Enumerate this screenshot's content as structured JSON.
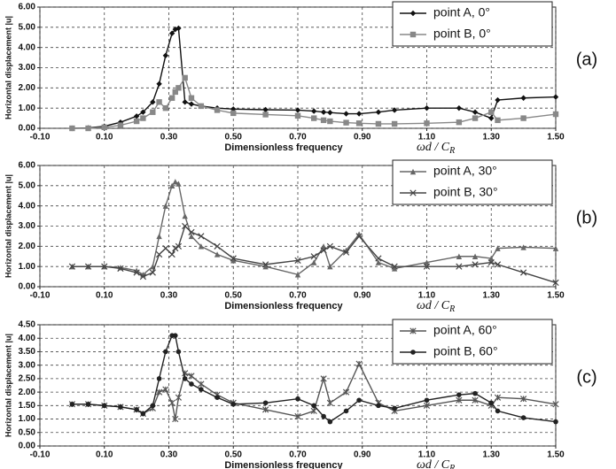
{
  "chart_data": [
    {
      "type": "line",
      "panel_label": "(a)",
      "xlabel": "Dimensionless frequency",
      "xlabel_formula": "ωd / C",
      "xlabel_formula_sub": "R",
      "ylabel": "Horizontal displacement |u|",
      "grid": true,
      "legend": "upper right",
      "xlim": [
        -0.1,
        1.5
      ],
      "ylim": [
        0,
        6
      ],
      "xticks": [
        {
          "value": -0.1,
          "label": "-0.10"
        },
        {
          "value": 0.1,
          "label": "0.10"
        },
        {
          "value": 0.3,
          "label": "0.30"
        },
        {
          "value": 0.5,
          "label": "0.50"
        },
        {
          "value": 0.7,
          "label": "0.70"
        },
        {
          "value": 0.9,
          "label": "0.90"
        },
        {
          "value": 1.1,
          "label": "1.10"
        },
        {
          "value": 1.3,
          "label": "1.30"
        },
        {
          "value": 1.5,
          "label": "1.50"
        }
      ],
      "yticks": [
        {
          "value": 0,
          "label": "0.00"
        },
        {
          "value": 1,
          "label": "1.00"
        },
        {
          "value": 2,
          "label": "2.00"
        },
        {
          "value": 3,
          "label": "3.00"
        },
        {
          "value": 4,
          "label": "4.00"
        },
        {
          "value": 5,
          "label": "5.00"
        },
        {
          "value": 6,
          "label": "6.00"
        }
      ],
      "x": [
        0.0,
        0.05,
        0.1,
        0.15,
        0.2,
        0.22,
        0.25,
        0.27,
        0.29,
        0.31,
        0.32,
        0.33,
        0.35,
        0.37,
        0.4,
        0.45,
        0.5,
        0.6,
        0.7,
        0.75,
        0.78,
        0.8,
        0.85,
        0.89,
        0.95,
        1.0,
        1.1,
        1.2,
        1.25,
        1.3,
        1.32,
        1.4,
        1.5
      ],
      "series": [
        {
          "name": "point A, 0°",
          "color": "#111111",
          "marker": "diamond",
          "values": [
            0,
            0.02,
            0.1,
            0.3,
            0.6,
            0.8,
            1.3,
            2.2,
            3.6,
            4.7,
            4.9,
            4.95,
            1.3,
            1.2,
            1.1,
            1.0,
            0.95,
            0.92,
            0.9,
            0.85,
            0.8,
            0.78,
            0.72,
            0.72,
            0.8,
            0.9,
            1.0,
            1.0,
            0.8,
            0.5,
            1.4,
            1.5,
            1.55
          ]
        },
        {
          "name": "point B, 0°",
          "color": "#888888",
          "marker": "square",
          "values": [
            0,
            0,
            0.05,
            0.15,
            0.35,
            0.5,
            0.8,
            1.3,
            1.0,
            1.5,
            1.8,
            2.0,
            2.5,
            1.5,
            1.1,
            0.9,
            0.75,
            0.68,
            0.62,
            0.5,
            0.4,
            0.35,
            0.28,
            0.25,
            0.22,
            0.22,
            0.25,
            0.3,
            0.5,
            0.8,
            0.4,
            0.5,
            0.7
          ]
        }
      ]
    },
    {
      "type": "line",
      "panel_label": "(b)",
      "xlabel": "Dimensionless frequency",
      "xlabel_formula": "ωd / C",
      "xlabel_formula_sub": "R",
      "ylabel": "Horizontal displacement |u|",
      "grid": true,
      "legend": "upper right",
      "xlim": [
        -0.1,
        1.5
      ],
      "ylim": [
        0,
        6
      ],
      "xticks": [
        {
          "value": -0.1,
          "label": "-0.10"
        },
        {
          "value": 0.1,
          "label": "0.10"
        },
        {
          "value": 0.3,
          "label": "0.30"
        },
        {
          "value": 0.5,
          "label": "0.50"
        },
        {
          "value": 0.7,
          "label": "0.70"
        },
        {
          "value": 0.9,
          "label": "0.90"
        },
        {
          "value": 1.1,
          "label": "1.10"
        },
        {
          "value": 1.3,
          "label": "1.30"
        },
        {
          "value": 1.5,
          "label": "1.50"
        }
      ],
      "yticks": [
        {
          "value": 0,
          "label": "0.00"
        },
        {
          "value": 1,
          "label": "1.00"
        },
        {
          "value": 2,
          "label": "2.00"
        },
        {
          "value": 3,
          "label": "3.00"
        },
        {
          "value": 4,
          "label": "4.00"
        },
        {
          "value": 5,
          "label": "5.00"
        },
        {
          "value": 6,
          "label": "6.00"
        }
      ],
      "x": [
        0.0,
        0.05,
        0.1,
        0.15,
        0.2,
        0.22,
        0.25,
        0.27,
        0.29,
        0.31,
        0.32,
        0.33,
        0.35,
        0.37,
        0.4,
        0.45,
        0.5,
        0.6,
        0.7,
        0.75,
        0.78,
        0.8,
        0.85,
        0.89,
        0.95,
        1.0,
        1.1,
        1.2,
        1.25,
        1.3,
        1.32,
        1.4,
        1.5
      ],
      "series": [
        {
          "name": "point A, 30°",
          "color": "#666666",
          "marker": "triangle",
          "values": [
            1.0,
            1.0,
            1.0,
            0.95,
            0.8,
            0.6,
            1.0,
            2.5,
            4.0,
            5.0,
            5.2,
            5.1,
            3.5,
            2.5,
            2.0,
            1.6,
            1.3,
            1.0,
            0.6,
            1.2,
            2.0,
            1.0,
            1.8,
            2.6,
            1.2,
            0.9,
            1.2,
            1.5,
            1.5,
            1.4,
            1.9,
            1.95,
            1.9
          ]
        },
        {
          "name": "point B, 30°",
          "color": "#444444",
          "marker": "cross",
          "values": [
            1.0,
            1.0,
            1.0,
            0.9,
            0.7,
            0.5,
            0.7,
            1.6,
            1.9,
            1.6,
            1.9,
            2.0,
            3.0,
            2.7,
            2.5,
            2.0,
            1.4,
            1.1,
            1.3,
            1.5,
            1.8,
            2.0,
            1.7,
            2.5,
            1.4,
            1.0,
            1.0,
            1.0,
            1.1,
            1.2,
            1.1,
            0.7,
            0.2
          ]
        }
      ]
    },
    {
      "type": "line",
      "panel_label": "(c)",
      "xlabel": "Dimensionless frequency",
      "xlabel_formula": "ωd / C",
      "xlabel_formula_sub": "R",
      "ylabel": "Horizontal displacement |u|",
      "grid": true,
      "legend": "upper right",
      "xlim": [
        -0.1,
        1.5
      ],
      "ylim": [
        0,
        4.5
      ],
      "xticks": [
        {
          "value": -0.1,
          "label": "-0.10"
        },
        {
          "value": 0.1,
          "label": "0.10"
        },
        {
          "value": 0.3,
          "label": "0.30"
        },
        {
          "value": 0.5,
          "label": "0.50"
        },
        {
          "value": 0.7,
          "label": "0.70"
        },
        {
          "value": 0.9,
          "label": "0.90"
        },
        {
          "value": 1.1,
          "label": "1.10"
        },
        {
          "value": 1.3,
          "label": "1.30"
        },
        {
          "value": 1.5,
          "label": "1.50"
        }
      ],
      "yticks": [
        {
          "value": 0,
          "label": "0.00"
        },
        {
          "value": 0.5,
          "label": "0.50"
        },
        {
          "value": 1,
          "label": "1.00"
        },
        {
          "value": 1.5,
          "label": "1.50"
        },
        {
          "value": 2,
          "label": "2.00"
        },
        {
          "value": 2.5,
          "label": "2.50"
        },
        {
          "value": 3,
          "label": "3.00"
        },
        {
          "value": 3.5,
          "label": "3.50"
        },
        {
          "value": 4,
          "label": "4.00"
        },
        {
          "value": 4.5,
          "label": "4.50"
        }
      ],
      "x": [
        0.0,
        0.05,
        0.1,
        0.15,
        0.2,
        0.22,
        0.25,
        0.27,
        0.29,
        0.31,
        0.32,
        0.33,
        0.35,
        0.37,
        0.4,
        0.45,
        0.5,
        0.6,
        0.7,
        0.75,
        0.78,
        0.8,
        0.85,
        0.89,
        0.95,
        1.0,
        1.1,
        1.2,
        1.25,
        1.3,
        1.32,
        1.4,
        1.5
      ],
      "series": [
        {
          "name": "point A, 60°",
          "color": "#555555",
          "marker": "star",
          "values": [
            1.55,
            1.55,
            1.5,
            1.45,
            1.35,
            1.2,
            1.4,
            2.0,
            2.1,
            1.6,
            1.0,
            1.8,
            2.7,
            2.6,
            2.3,
            1.9,
            1.6,
            1.35,
            1.1,
            1.3,
            2.5,
            1.6,
            2.0,
            3.05,
            1.6,
            1.3,
            1.5,
            1.7,
            1.7,
            1.5,
            1.8,
            1.75,
            1.55
          ]
        },
        {
          "name": "point B, 60°",
          "color": "#222222",
          "marker": "circle",
          "values": [
            1.55,
            1.55,
            1.5,
            1.45,
            1.35,
            1.2,
            1.5,
            2.5,
            3.5,
            4.1,
            4.1,
            3.5,
            2.5,
            2.3,
            2.1,
            1.8,
            1.55,
            1.6,
            1.75,
            1.5,
            1.1,
            0.9,
            1.3,
            1.7,
            1.5,
            1.4,
            1.7,
            1.9,
            1.95,
            1.6,
            1.3,
            1.05,
            0.9
          ]
        }
      ]
    }
  ]
}
